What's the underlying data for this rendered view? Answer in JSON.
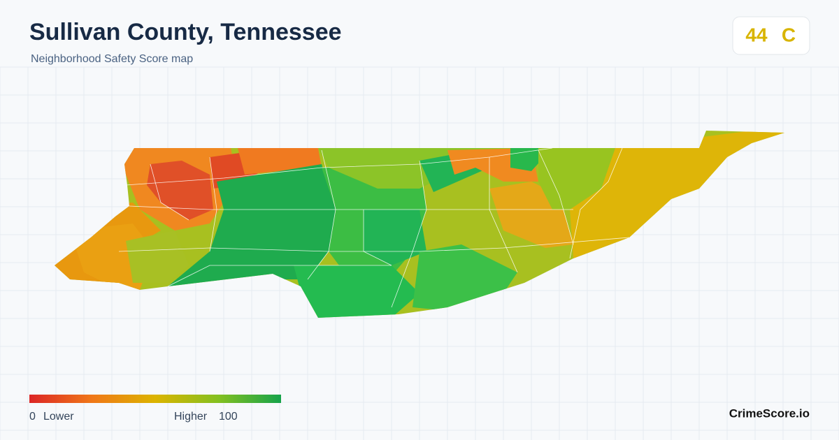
{
  "header": {
    "title": "Sullivan County, Tennessee",
    "subtitle": "Neighborhood Safety Score map"
  },
  "score": {
    "value": 44,
    "grade": "C"
  },
  "legend": {
    "min": 0,
    "min_label": "Lower",
    "max_label": "Higher",
    "max": 100
  },
  "brand": "CrimeScore.io"
}
